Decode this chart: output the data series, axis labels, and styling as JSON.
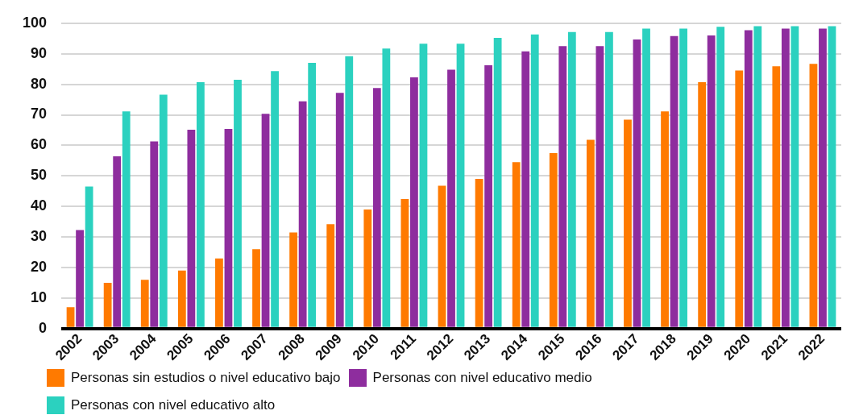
{
  "chart_data": {
    "type": "bar",
    "categories": [
      "2002",
      "2003",
      "2004",
      "2005",
      "2006",
      "2007",
      "2008",
      "2009",
      "2010",
      "2011",
      "2012",
      "2013",
      "2014",
      "2015",
      "2016",
      "2017",
      "2018",
      "2019",
      "2020",
      "2021",
      "2022"
    ],
    "series": [
      {
        "name": "Personas sin estudios o nivel educativo bajo",
        "color": "#ff7a00",
        "values": [
          7,
          15,
          16,
          19,
          23,
          26,
          31.5,
          34.2,
          39,
          42.4,
          46.8,
          49,
          54.5,
          57.5,
          61.8,
          68.4,
          71.1,
          80.7,
          84.5,
          85.9,
          86.7
        ]
      },
      {
        "name": "Personas con nivel educativo medio",
        "color": "#8e2d9e",
        "values": [
          32.3,
          56.4,
          61.3,
          65.1,
          65.4,
          70.3,
          74.4,
          77.2,
          78.8,
          82.3,
          84.8,
          86.2,
          90.8,
          92.5,
          92.5,
          94.7,
          95.8,
          96,
          97.7,
          98.2,
          98.2
        ]
      },
      {
        "name": "Personas con nivel educativo alto",
        "color": "#2bd1bf",
        "values": [
          46.5,
          71.1,
          76.6,
          80.7,
          81.5,
          84.3,
          87,
          89.2,
          91.7,
          93.3,
          93.3,
          95.2,
          96.3,
          97.1,
          97.1,
          98.2,
          98.2,
          98.8,
          99,
          99,
          99
        ]
      }
    ],
    "ylim": [
      0,
      100
    ],
    "yticks": [
      0,
      10,
      20,
      30,
      40,
      50,
      60,
      70,
      80,
      90,
      100
    ],
    "grid": "y",
    "legend": "bottom"
  }
}
